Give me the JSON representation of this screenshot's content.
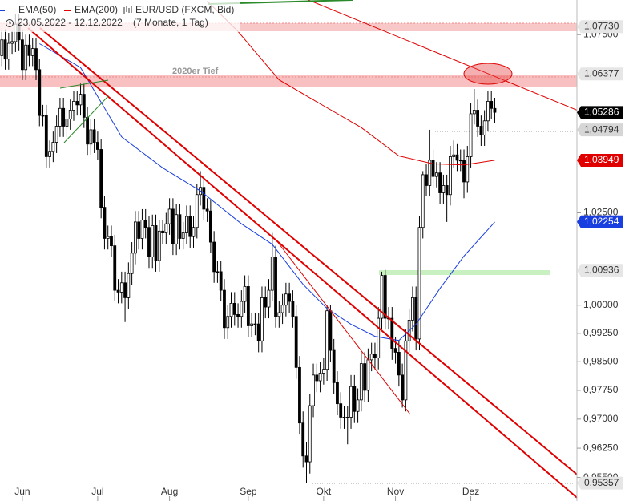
{
  "chart_data": {
    "type": "candlestick",
    "title": "EUR/USD (FXCM, Bid)",
    "subtitle": "23.05.2022 - 12.12.2022",
    "period": "(7 Monate, 1 Tag)",
    "log_scale": true,
    "ylim": [
      0.949,
      1.085
    ],
    "xlim": [
      0,
      169
    ],
    "yticks": [
      {
        "value": 1.075,
        "label": "1,07500"
      },
      {
        "value": 1.025,
        "label": "1,02500"
      },
      {
        "value": 1.0,
        "label": "1,00000"
      },
      {
        "value": 0.9925,
        "label": "0,99250"
      },
      {
        "value": 0.985,
        "label": "0,98500"
      },
      {
        "value": 0.9775,
        "label": "0,97750"
      },
      {
        "value": 0.97,
        "label": "0,97000"
      },
      {
        "value": 0.9625,
        "label": "0,96250"
      },
      {
        "value": 0.955,
        "label": "0,95500"
      }
    ],
    "xticks": [
      {
        "value": 7,
        "label": "Jun"
      },
      {
        "value": 29,
        "label": "Jul"
      },
      {
        "value": 50,
        "label": "Aug"
      },
      {
        "value": 73,
        "label": "Sep"
      },
      {
        "value": 95,
        "label": "Okt"
      },
      {
        "value": 116,
        "label": "Nov"
      },
      {
        "value": 138,
        "label": "Dez"
      }
    ],
    "up_color": "#ffffff",
    "down_color": "#000000",
    "open": [
      1.0705,
      1.069,
      1.0735,
      1.068,
      1.0725,
      1.073,
      1.078,
      1.0735,
      1.065,
      1.072,
      1.069,
      1.071,
      1.065,
      1.052,
      1.052,
      1.0405,
      1.042,
      1.0445,
      1.049,
      1.054,
      1.049,
      1.051,
      1.0535,
      1.056,
      1.055,
      1.058,
      1.0515,
      1.044,
      1.048,
      1.0445,
      1.0425,
      1.0265,
      1.018,
      1.0185,
      1.016,
      1.004,
      1.0035,
      1.006,
      1.002,
      1.0085,
      1.014,
      1.0225,
      1.018,
      1.023,
      1.021,
      1.013,
      1.0215,
      1.012,
      1.02,
      1.0195,
      1.022,
      1.026,
      1.0165,
      1.0245,
      1.018,
      1.0195,
      1.024,
      1.0185,
      1.021,
      1.03,
      1.032,
      1.026,
      1.0255,
      1.017,
      1.009,
      1.009,
      1.004,
      0.994,
      0.997,
      1.0005,
      0.9975,
      0.997,
      1.001,
      1.005,
      0.9945,
      0.995,
      0.995,
      0.9905,
      1.002,
      0.9995,
      1.004,
      1.013,
      0.997,
      0.998,
      1.0,
      1.003,
      1.001,
      0.997,
      0.9835,
      0.969,
      0.9605,
      0.959,
      0.9735,
      0.9815,
      0.98,
      0.982,
      0.983,
      0.9985,
      0.988,
      0.9795,
      0.974,
      0.9705,
      0.9705,
      0.9705,
      0.9785,
      0.972,
      0.975,
      0.9845,
      0.9775,
      0.9855,
      0.987,
      0.986,
      0.9965,
      1.008,
      0.9965,
      0.9965,
      0.9885,
      0.9875,
      0.9815,
      0.975,
      0.9905,
      0.996,
      1.002,
      0.991,
      1.021,
      1.0355,
      1.0325,
      1.0395,
      1.035,
      1.036,
      1.0305,
      1.0325,
      1.03,
      1.0405,
      1.041,
      1.0395,
      1.0395,
      1.0335,
      1.0405,
      1.0525,
      1.0535,
      1.049,
      1.0465,
      1.0505,
      1.056,
      1.054
    ],
    "high": [
      1.0735,
      1.0765,
      1.0765,
      1.0755,
      1.076,
      1.081,
      1.081,
      1.0765,
      1.075,
      1.075,
      1.074,
      1.074,
      1.068,
      1.055,
      1.055,
      1.045,
      1.0475,
      1.052,
      1.057,
      1.057,
      1.054,
      1.0565,
      1.059,
      1.059,
      1.061,
      1.061,
      1.0545,
      1.051,
      1.051,
      1.0475,
      1.0455,
      1.0295,
      1.0215,
      1.0215,
      1.019,
      1.007,
      1.009,
      1.009,
      1.0115,
      1.017,
      1.0255,
      1.0255,
      1.026,
      1.026,
      1.024,
      1.0245,
      1.0245,
      1.023,
      1.023,
      1.025,
      1.029,
      1.029,
      1.0275,
      1.0275,
      1.0225,
      1.027,
      1.027,
      1.024,
      1.033,
      1.0365,
      1.035,
      1.029,
      1.0285,
      1.02,
      1.012,
      1.012,
      1.007,
      1.0,
      1.0035,
      1.0035,
      1.0005,
      1.004,
      1.008,
      1.008,
      0.998,
      0.998,
      0.998,
      1.005,
      1.005,
      1.007,
      1.0195,
      1.016,
      1.001,
      1.003,
      1.006,
      1.006,
      1.004,
      1.0,
      0.9865,
      0.972,
      0.964,
      0.9765,
      0.9845,
      0.9845,
      0.985,
      0.986,
      1.0,
      1.0,
      0.991,
      0.9825,
      0.977,
      0.9735,
      0.9735,
      0.9815,
      0.9815,
      0.978,
      0.9875,
      0.9875,
      0.9885,
      0.99,
      0.99,
      0.9995,
      1.009,
      1.0095,
      0.9995,
      0.9995,
      0.9915,
      0.9905,
      0.9845,
      0.9935,
      0.999,
      1.005,
      1.005,
      1.024,
      1.0365,
      1.0385,
      1.048,
      1.0425,
      1.039,
      1.039,
      1.0355,
      1.0355,
      1.0435,
      1.045,
      1.044,
      1.0425,
      1.0425,
      1.0435,
      1.0555,
      1.0595,
      1.0565,
      1.052,
      1.0535,
      1.059,
      1.059,
      1.057
    ],
    "low": [
      1.066,
      1.066,
      1.065,
      1.065,
      1.0695,
      1.07,
      1.0705,
      1.062,
      1.062,
      1.066,
      1.066,
      1.062,
      1.049,
      1.049,
      1.0375,
      1.0375,
      1.039,
      1.0415,
      1.046,
      1.046,
      1.046,
      1.048,
      1.0505,
      1.052,
      1.052,
      1.0485,
      1.041,
      1.041,
      1.0415,
      1.0395,
      1.0235,
      1.015,
      1.015,
      1.013,
      1.001,
      1.0005,
      1.0005,
      0.9955,
      0.999,
      1.0055,
      1.011,
      1.015,
      1.015,
      1.018,
      1.01,
      1.01,
      1.009,
      1.009,
      1.0165,
      1.0165,
      1.019,
      1.0135,
      1.0135,
      1.015,
      1.015,
      1.0165,
      1.0155,
      1.0155,
      1.018,
      1.027,
      1.023,
      1.0225,
      1.014,
      1.006,
      1.006,
      1.001,
      0.991,
      0.991,
      0.994,
      0.9945,
      0.994,
      0.994,
      0.998,
      0.9915,
      0.9915,
      0.992,
      0.9875,
      0.9875,
      0.9965,
      0.9965,
      1.001,
      0.994,
      0.994,
      0.995,
      0.997,
      0.998,
      0.994,
      0.9805,
      0.966,
      0.9575,
      0.9536,
      0.956,
      0.9705,
      0.977,
      0.977,
      0.979,
      0.98,
      0.985,
      0.9765,
      0.971,
      0.9675,
      0.9675,
      0.9635,
      0.9675,
      0.969,
      0.969,
      0.972,
      0.9745,
      0.9745,
      0.9825,
      0.983,
      0.983,
      0.9935,
      0.9935,
      0.9935,
      0.9855,
      0.9845,
      0.9785,
      0.973,
      0.972,
      0.9875,
      0.993,
      0.988,
      0.988,
      1.018,
      1.0295,
      1.0295,
      1.032,
      1.032,
      1.0275,
      1.0275,
      1.0225,
      1.027,
      1.0375,
      1.0365,
      1.0365,
      1.029,
      1.0305,
      1.0375,
      1.0495,
      1.046,
      1.0435,
      1.0435,
      1.0475,
      1.051,
      1.05
    ],
    "close": [
      1.069,
      1.0735,
      1.068,
      1.0725,
      1.073,
      1.078,
      1.0735,
      1.065,
      1.072,
      1.069,
      1.071,
      1.065,
      1.052,
      1.052,
      1.0405,
      1.042,
      1.0445,
      1.049,
      1.054,
      1.049,
      1.051,
      1.0535,
      1.056,
      1.055,
      1.058,
      1.0515,
      1.044,
      1.048,
      1.0445,
      1.0425,
      1.0265,
      1.018,
      1.0185,
      1.016,
      1.004,
      1.0035,
      1.006,
      1.002,
      1.0085,
      1.014,
      1.0225,
      1.018,
      1.023,
      1.021,
      1.013,
      1.0215,
      1.012,
      1.02,
      1.0195,
      1.022,
      1.026,
      1.0165,
      1.0245,
      1.018,
      1.0195,
      1.024,
      1.0185,
      1.021,
      1.03,
      1.032,
      1.026,
      1.0255,
      1.017,
      1.009,
      1.009,
      1.004,
      0.994,
      0.997,
      1.0005,
      0.9975,
      0.997,
      1.001,
      1.005,
      0.9945,
      0.995,
      0.995,
      0.9905,
      1.002,
      0.9995,
      1.004,
      1.013,
      0.997,
      0.998,
      1.0,
      1.003,
      1.001,
      0.997,
      0.9835,
      0.969,
      0.9605,
      0.959,
      0.9735,
      0.9815,
      0.98,
      0.982,
      0.983,
      0.9985,
      0.988,
      0.9795,
      0.974,
      0.9705,
      0.9705,
      0.9705,
      0.9785,
      0.972,
      0.975,
      0.9845,
      0.9775,
      0.9855,
      0.987,
      0.986,
      0.9965,
      1.008,
      0.9965,
      0.9965,
      0.9885,
      0.9875,
      0.9815,
      0.975,
      0.9905,
      0.996,
      1.002,
      0.991,
      1.021,
      1.0355,
      1.0325,
      1.0395,
      1.035,
      1.036,
      1.0305,
      1.0325,
      1.03,
      1.0405,
      1.041,
      1.0395,
      1.0395,
      1.0335,
      1.0405,
      1.0525,
      1.0535,
      1.049,
      1.0465,
      1.0505,
      1.056,
      1.054,
      1.0529
    ],
    "indicators": [
      {
        "name": "EMA(50)",
        "color": "#1a3fe0",
        "x": [
          12,
          24,
          36,
          48,
          59,
          71,
          80,
          89,
          96,
          103,
          110,
          117,
          122,
          129,
          136,
          145
        ],
        "values": [
          1.0724,
          1.0656,
          1.046,
          1.0374,
          1.031,
          1.022,
          1.0164,
          1.0056,
          0.9991,
          0.9949,
          0.9917,
          0.9906,
          0.9949,
          1.0045,
          1.0132,
          1.0225
        ]
      },
      {
        "name": "EMA(200)",
        "color": "#e00000",
        "x": [
          61,
          70,
          82,
          94,
          106,
          117,
          127,
          136,
          145
        ],
        "values": [
          1.0847,
          1.0759,
          1.0621,
          1.0553,
          1.0486,
          1.0407,
          1.0385,
          1.0382,
          1.0395
        ]
      }
    ],
    "levels": [
      {
        "value": 1.0773,
        "label": "1,07730",
        "color": "#e6e6e6",
        "text_color": "#333333"
      },
      {
        "value": 1.06377,
        "label": "1,06377",
        "color": "#e6e6e6",
        "text_color": "#333333"
      },
      {
        "value": 1.05286,
        "label": "1,05286",
        "color": "#000000",
        "text_color": "#ffffff"
      },
      {
        "value": 1.04794,
        "label": "1,04794",
        "color": "#d6d6d6",
        "text_color": "#333333"
      },
      {
        "value": 1.03949,
        "label": "1,03949",
        "color": "#e00000",
        "text_color": "#ffffff"
      },
      {
        "value": 1.02254,
        "label": "1,02254",
        "color": "#1a3fe0",
        "text_color": "#ffffff"
      },
      {
        "value": 1.00936,
        "label": "1,00936",
        "color": "#e6e6e6",
        "text_color": "#333333"
      },
      {
        "value": 0.95357,
        "label": "0,95357",
        "color": "#e6e6e6",
        "text_color": "#333333"
      }
    ],
    "annotation": "2020er Tief"
  }
}
